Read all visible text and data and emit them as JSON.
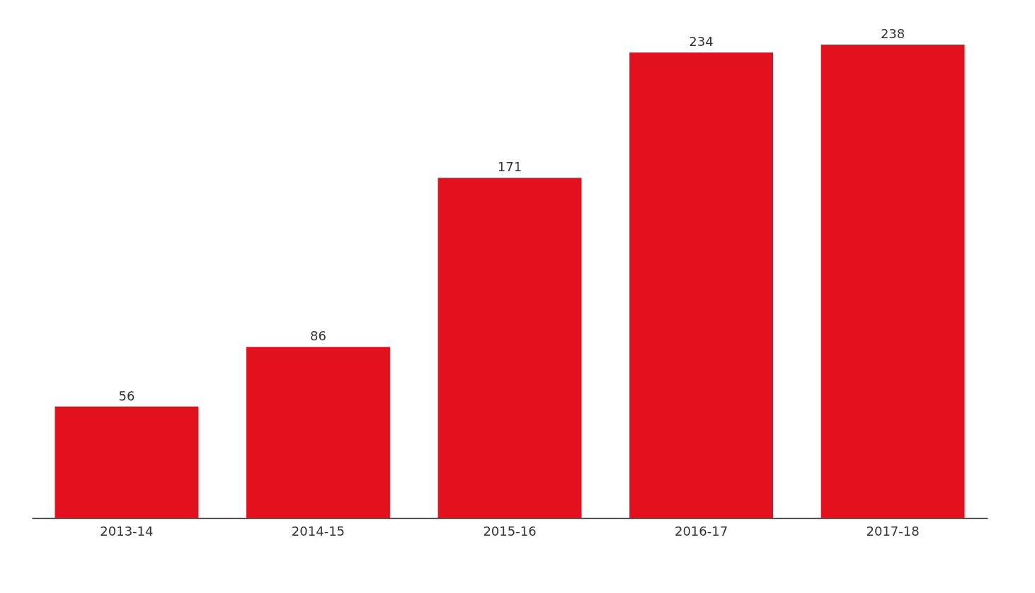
{
  "chart_data": {
    "type": "bar",
    "categories": [
      "2013-14",
      "2014-15",
      "2015-16",
      "2016-17",
      "2017-18"
    ],
    "values": [
      56,
      86,
      171,
      234,
      238
    ],
    "color": "#e3111d",
    "data_labels": true
  }
}
